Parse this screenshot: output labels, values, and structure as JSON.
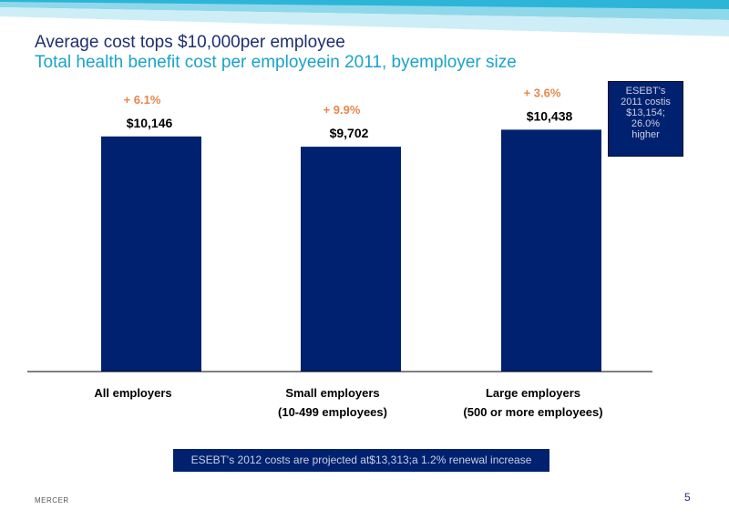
{
  "title": "Average cost tops $10,000per employee",
  "subtitle": "Total health benefit cost per employeein 2011, byemployer size",
  "colors": {
    "bar": "#00216f",
    "change": "#e8874a",
    "title": "#1f2f6e",
    "subtitle": "#1aa3c8"
  },
  "chart_data": {
    "type": "bar",
    "categories": [
      [
        "All    employers"
      ],
      [
        "Small      employers",
        "(10-499       employees)"
      ],
      [
        "Large      employers",
        "(500     or    more      employees)"
      ]
    ],
    "values": [
      10146,
      9702,
      10438
    ],
    "value_labels": [
      "$10,146",
      "$9,702",
      "$10,438"
    ],
    "change_labels": [
      "+  6.1%",
      "+  9.9%",
      "+  3.6%"
    ],
    "ylim": [
      0,
      11200
    ],
    "grid": false,
    "legend": "none"
  },
  "callout": {
    "lines": [
      "ESEBT's",
      "2011 costis",
      "$13,154;",
      "26.0%",
      "higher"
    ]
  },
  "note": "ESEBT's 2012 costs are projected at$13,313;a 1.2% renewal increase",
  "footer": "MERCER",
  "page_number": "5"
}
